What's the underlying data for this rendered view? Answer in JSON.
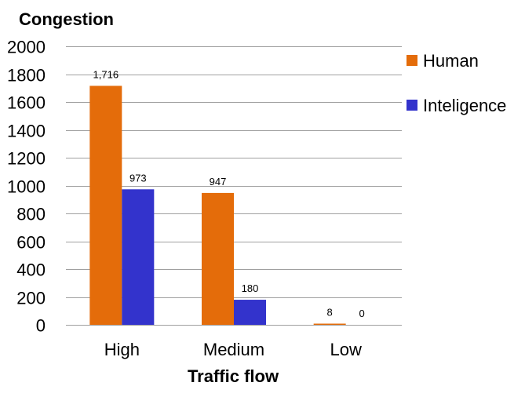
{
  "chart_data": {
    "type": "bar",
    "ylabel": "Congestion",
    "xlabel": "Traffic flow",
    "categories": [
      "High",
      "Medium",
      "Low"
    ],
    "series": [
      {
        "name": "Human",
        "values": [
          1716,
          947,
          8
        ],
        "labels": [
          "1,716",
          "947",
          "8"
        ],
        "color": "#E46C0A"
      },
      {
        "name": "Inteligence",
        "values": [
          973,
          180,
          0
        ],
        "labels": [
          "973",
          "180",
          "0"
        ],
        "color": "#3333CC"
      }
    ],
    "ylim": [
      0,
      2000
    ],
    "yticks": [
      "0",
      "200",
      "400",
      "600",
      "800",
      "1000",
      "1200",
      "1400",
      "1600",
      "1800",
      "2000"
    ],
    "grid": true,
    "legend_position": "right"
  }
}
